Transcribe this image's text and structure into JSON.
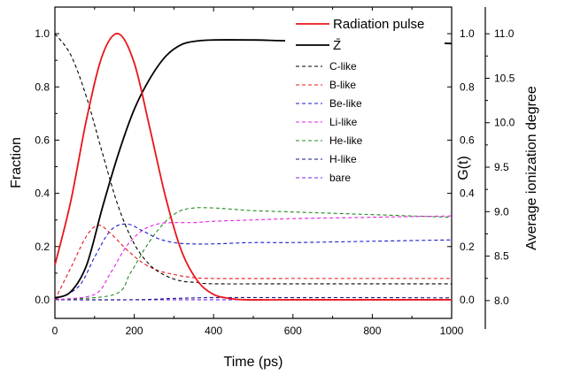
{
  "chart_data": {
    "type": "line",
    "xlabel": "Time (ps)",
    "ylabel_left": "Fraction",
    "ylabel_mid": "G(t)",
    "ylabel_right": "Average ionization degree",
    "xlim": [
      0,
      1000
    ],
    "ylim_left": [
      -0.07,
      1.1
    ],
    "ylim_mid": [
      -0.07,
      1.1
    ],
    "ylim_right": [
      7.8,
      11.3
    ],
    "x_ticks": [
      0,
      200,
      400,
      600,
      800,
      1000
    ],
    "x_tick_labels": [
      "0",
      "200",
      "400",
      "600",
      "800",
      "1000"
    ],
    "y_left_ticks": [
      0.0,
      0.2,
      0.4,
      0.6,
      0.8,
      1.0
    ],
    "y_left_tick_labels": [
      "0.0",
      "0.2",
      "0.4",
      "0.6",
      "0.8",
      "1.0"
    ],
    "y_mid_ticks": [
      0.0,
      0.2,
      0.4,
      0.6,
      0.8,
      1.0
    ],
    "y_mid_tick_labels": [
      "0.0",
      "0.2",
      "0.4",
      "0.6",
      "0.8",
      "1.0"
    ],
    "y_right_ticks": [
      8.0,
      8.5,
      9.0,
      9.5,
      10.0,
      10.5,
      11.0
    ],
    "y_right_tick_labels": [
      "8.0",
      "8.5",
      "9.0",
      "9.5",
      "10.0",
      "10.5",
      "11.0"
    ],
    "legend_placement": "top-right",
    "grid": false,
    "series": [
      {
        "name": "Radiation pulse",
        "axis": "mid",
        "color": "#e8161b",
        "dash": "solid",
        "x": [
          0,
          40,
          80,
          120,
          160,
          200,
          240,
          280,
          320,
          360,
          400,
          440,
          480,
          600,
          800,
          1000
        ],
        "y": [
          0.13,
          0.37,
          0.68,
          0.92,
          1.0,
          0.89,
          0.64,
          0.38,
          0.18,
          0.07,
          0.02,
          0.005,
          0.0,
          0.0,
          0.0,
          0.0
        ]
      },
      {
        "name": "Z̄",
        "axis": "right",
        "color": "#000000",
        "dash": "solid",
        "x": [
          0,
          40,
          80,
          120,
          160,
          200,
          240,
          280,
          320,
          360,
          400,
          500,
          600,
          800,
          1000
        ],
        "y": [
          8.03,
          8.1,
          8.4,
          9.05,
          9.65,
          10.15,
          10.5,
          10.75,
          10.88,
          10.92,
          10.93,
          10.93,
          10.92,
          10.91,
          10.89
        ]
      },
      {
        "name": "C-like",
        "axis": "left",
        "color": "#000000",
        "dash": "dashed",
        "x": [
          0,
          40,
          80,
          120,
          160,
          200,
          240,
          280,
          320,
          360,
          400,
          600,
          800,
          1000
        ],
        "y": [
          1.0,
          0.92,
          0.76,
          0.55,
          0.35,
          0.21,
          0.13,
          0.09,
          0.07,
          0.065,
          0.06,
          0.06,
          0.06,
          0.06
        ]
      },
      {
        "name": "B-like",
        "axis": "left",
        "color": "#e8161b",
        "dash": "dashed",
        "x": [
          0,
          40,
          80,
          110,
          140,
          180,
          220,
          260,
          300,
          340,
          400,
          600,
          800,
          1000
        ],
        "y": [
          0.0,
          0.12,
          0.24,
          0.28,
          0.25,
          0.19,
          0.14,
          0.11,
          0.095,
          0.085,
          0.08,
          0.08,
          0.08,
          0.08
        ]
      },
      {
        "name": "Be-like",
        "axis": "left",
        "color": "#1a1acc",
        "dash": "dashed",
        "x": [
          0,
          60,
          100,
          140,
          180,
          220,
          260,
          300,
          340,
          400,
          500,
          600,
          800,
          1000
        ],
        "y": [
          0.0,
          0.05,
          0.16,
          0.26,
          0.285,
          0.26,
          0.23,
          0.215,
          0.21,
          0.21,
          0.215,
          0.215,
          0.22,
          0.225
        ]
      },
      {
        "name": "Li-like",
        "axis": "left",
        "color": "#e61ee6",
        "dash": "dashed",
        "x": [
          0,
          100,
          140,
          180,
          220,
          260,
          300,
          350,
          400,
          500,
          600,
          800,
          1000
        ],
        "y": [
          0.0,
          0.02,
          0.1,
          0.2,
          0.26,
          0.285,
          0.29,
          0.29,
          0.295,
          0.3,
          0.305,
          0.31,
          0.315
        ]
      },
      {
        "name": "He-like",
        "axis": "left",
        "color": "#1f8a1f",
        "dash": "dashed",
        "x": [
          0,
          150,
          190,
          230,
          270,
          310,
          350,
          400,
          450,
          500,
          600,
          700,
          800,
          900,
          1000
        ],
        "y": [
          0.0,
          0.02,
          0.1,
          0.2,
          0.28,
          0.33,
          0.345,
          0.345,
          0.34,
          0.335,
          0.33,
          0.325,
          0.32,
          0.315,
          0.31
        ]
      },
      {
        "name": "H-like",
        "axis": "left",
        "color": "#14148a",
        "dash": "dashed",
        "x": [
          0,
          200,
          300,
          400,
          600,
          800,
          1000
        ],
        "y": [
          0.0,
          0.0,
          0.005,
          0.008,
          0.008,
          0.008,
          0.007
        ]
      },
      {
        "name": "bare",
        "axis": "left",
        "color": "#7a1ee6",
        "dash": "dashed",
        "x": [
          0,
          1000
        ],
        "y": [
          0.0,
          0.0
        ]
      }
    ]
  }
}
